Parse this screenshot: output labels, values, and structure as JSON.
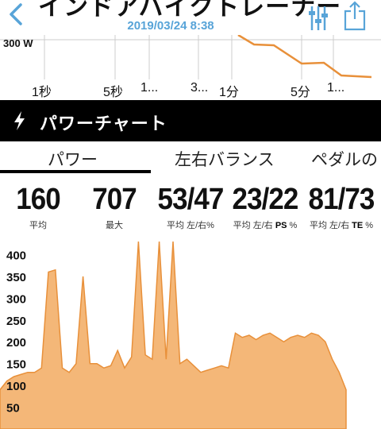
{
  "nav": {
    "title": "インドアバイクトレーナー",
    "date": "2019/03/24 8:38",
    "back_icon": "chevron-left-icon",
    "settings_icon": "sliders-icon",
    "share_icon": "share-icon",
    "accent_color": "#58a4d8"
  },
  "mini_chart": {
    "y_label": "300 W",
    "ticks": [
      "1秒",
      "5秒",
      "1...",
      "3...",
      "1分",
      "5分",
      "1..."
    ],
    "line_color": "#e8903a"
  },
  "section": {
    "title": "パワーチャート",
    "icon": "lightning-icon"
  },
  "tabs": [
    {
      "label": "パワー",
      "active": true
    },
    {
      "label": "左右バランス",
      "active": false
    },
    {
      "label": "ペダルの",
      "active": false
    }
  ],
  "stats": [
    {
      "value": "160",
      "label": "平均"
    },
    {
      "value": "707",
      "label": "最大"
    },
    {
      "value": "53/47",
      "label": "平均 左/右%"
    },
    {
      "value": "23/22",
      "label_pre": "平均 左/右 ",
      "label_bold": "PS",
      "label_post": " %"
    },
    {
      "value": "81/73",
      "label_pre": "平均 左/右 ",
      "label_bold": "TE",
      "label_post": " %"
    }
  ],
  "chart_data": {
    "type": "area",
    "fill_color": "#f4b778",
    "line_color": "#e8903a",
    "y_ticks": [
      50,
      100,
      150,
      200,
      250,
      300,
      350,
      400
    ],
    "ylim": [
      0,
      430
    ],
    "x": [
      0,
      2,
      4,
      6,
      8,
      10,
      12,
      14,
      16,
      18,
      20,
      22,
      24,
      26,
      28,
      30,
      32,
      34,
      36,
      38,
      40,
      42,
      44,
      46,
      48,
      50,
      52,
      54,
      56,
      58,
      60,
      62,
      64,
      66,
      68,
      70,
      72,
      74,
      76,
      78,
      80,
      82,
      84,
      86,
      88,
      90,
      92,
      94,
      96,
      98,
      100
    ],
    "values": [
      90,
      110,
      120,
      125,
      130,
      130,
      140,
      360,
      365,
      140,
      130,
      150,
      350,
      150,
      150,
      140,
      145,
      180,
      140,
      165,
      430,
      170,
      160,
      430,
      160,
      430,
      150,
      160,
      145,
      130,
      135,
      140,
      145,
      140,
      220,
      210,
      215,
      205,
      215,
      220,
      210,
      200,
      210,
      215,
      210,
      220,
      215,
      200,
      160,
      130,
      90
    ]
  }
}
